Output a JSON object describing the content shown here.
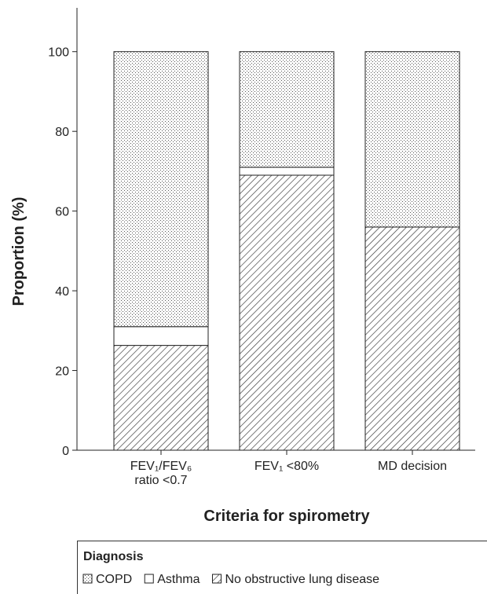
{
  "chart_data": {
    "type": "stacked-bar",
    "ylabel": "Proportion (%)",
    "xlabel": "Criteria for spirometry",
    "categories": [
      "FEV₁/FEV₆ ratio <0.7",
      "FEV₁ <80%",
      "MD decision"
    ],
    "series": [
      {
        "name": "No obstructive lung disease",
        "pattern": "hatch",
        "values": [
          26.3,
          69,
          56
        ]
      },
      {
        "name": "Asthma",
        "pattern": "none",
        "values": [
          4.7,
          2,
          0
        ]
      },
      {
        "name": "COPD",
        "pattern": "dots",
        "values": [
          69,
          29,
          44
        ]
      }
    ],
    "ylim": [
      0,
      110
    ],
    "yticks": [
      0,
      20,
      40,
      60,
      80,
      100
    ],
    "legend_title": "Diagnosis"
  }
}
